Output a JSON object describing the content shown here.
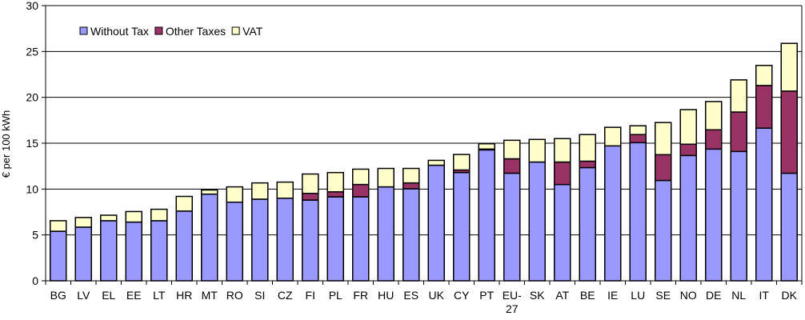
{
  "chart_data": {
    "type": "bar",
    "stacked": true,
    "title": "",
    "xlabel": "",
    "ylabel": "€ per 100 kWh",
    "ylim": [
      0,
      30
    ],
    "yticks": [
      0,
      5,
      10,
      15,
      20,
      25,
      30
    ],
    "grid": true,
    "legend_position": "top-left",
    "categories": [
      "BG",
      "LV",
      "EL",
      "EE",
      "LT",
      "HR",
      "MT",
      "RO",
      "SI",
      "CZ",
      "FI",
      "PL",
      "FR",
      "HU",
      "ES",
      "UK",
      "CY",
      "PT",
      "EU-27",
      "SK",
      "AT",
      "BE",
      "IE",
      "LU",
      "SE",
      "NO",
      "DE",
      "NL",
      "IT",
      "DK"
    ],
    "series": [
      {
        "name": "Without Tax",
        "color": "#9999ff",
        "values": [
          5.4,
          5.85,
          6.55,
          6.4,
          6.55,
          7.6,
          9.45,
          8.57,
          8.9,
          9.0,
          8.8,
          9.15,
          9.15,
          10.24,
          10.03,
          12.6,
          11.8,
          14.27,
          11.73,
          12.95,
          10.5,
          12.34,
          14.71,
          15.06,
          10.94,
          13.66,
          14.36,
          14.1,
          16.64,
          11.73
        ]
      },
      {
        "name": "Other Taxes",
        "color": "#993366",
        "values": [
          0,
          0,
          0,
          0,
          0,
          0,
          0,
          0,
          0,
          0,
          0.73,
          0.55,
          1.35,
          0,
          0.64,
          0,
          0.28,
          0.09,
          1.57,
          0,
          2.45,
          0.7,
          0,
          0.88,
          2.81,
          1.23,
          2.1,
          4.3,
          4.65,
          8.95
        ]
      },
      {
        "name": "VAT",
        "color": "#ffffcc",
        "values": [
          1.15,
          1.05,
          0.6,
          1.15,
          1.25,
          1.6,
          0.45,
          1.67,
          1.77,
          1.76,
          2.11,
          2.1,
          1.67,
          2.01,
          1.58,
          0.53,
          1.69,
          0.58,
          2.02,
          2.46,
          2.55,
          2.9,
          2.02,
          0.96,
          3.5,
          3.77,
          3.08,
          3.5,
          2.19,
          5.2
        ]
      }
    ]
  }
}
